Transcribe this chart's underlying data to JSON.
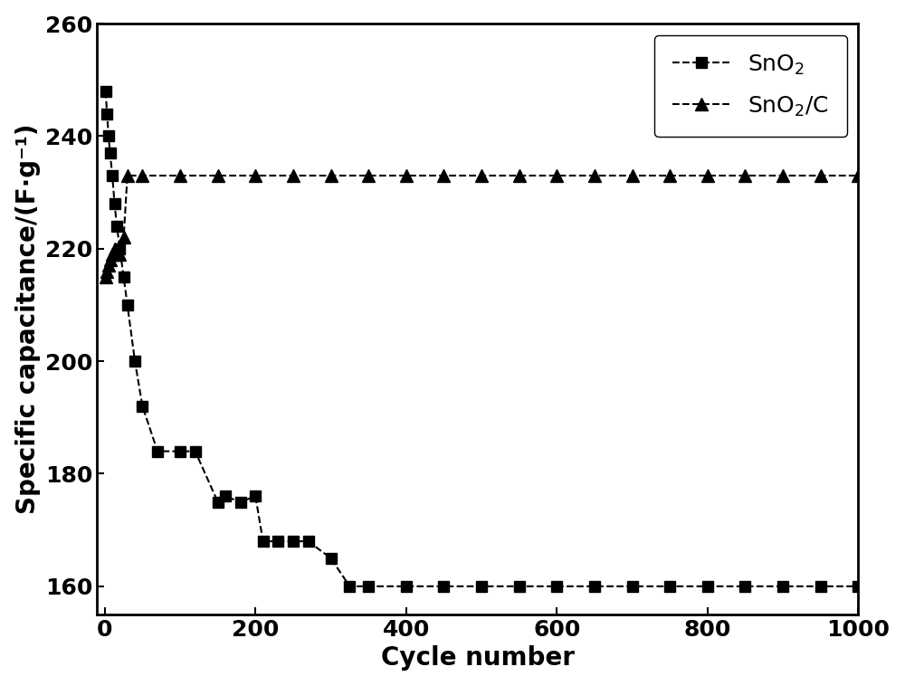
{
  "sno2_x": [
    1,
    3,
    5,
    7,
    10,
    13,
    16,
    20,
    25,
    30,
    40,
    50,
    70,
    100,
    120,
    150,
    160,
    180,
    200,
    210,
    230,
    250,
    270,
    300,
    325,
    350,
    400,
    450,
    500,
    550,
    600,
    650,
    700,
    750,
    800,
    850,
    900,
    950,
    1000
  ],
  "sno2_y": [
    248,
    244,
    240,
    237,
    233,
    228,
    224,
    220,
    215,
    210,
    200,
    192,
    184,
    184,
    184,
    175,
    176,
    175,
    176,
    168,
    168,
    168,
    168,
    165,
    160,
    160,
    160,
    160,
    160,
    160,
    160,
    160,
    160,
    160,
    160,
    160,
    160,
    160,
    160
  ],
  "sno2c_x": [
    1,
    3,
    5,
    8,
    10,
    13,
    16,
    20,
    25,
    30,
    50,
    100,
    150,
    200,
    250,
    300,
    350,
    400,
    450,
    500,
    550,
    600,
    650,
    700,
    750,
    800,
    850,
    900,
    950,
    1000
  ],
  "sno2c_y": [
    215,
    216,
    217,
    218,
    219,
    220,
    219,
    219,
    222,
    233,
    233,
    233,
    233,
    233,
    233,
    233,
    233,
    233,
    233,
    233,
    233,
    233,
    233,
    233,
    233,
    233,
    233,
    233,
    233,
    233
  ],
  "xlabel": "Cycle number",
  "ylabel": "Specific capacitance/(F·g⁻¹)",
  "xlim": [
    -10,
    1000
  ],
  "ylim": [
    155,
    260
  ],
  "yticks": [
    160,
    180,
    200,
    220,
    240,
    260
  ],
  "xticks": [
    0,
    200,
    400,
    600,
    800,
    1000
  ],
  "legend_sno2": "SnO$_2$",
  "legend_sno2c": "SnO$_2$/C",
  "line_color": "#000000",
  "marker_color": "#000000",
  "bg_color": "#ffffff",
  "fontsize_label": 20,
  "fontsize_tick": 18,
  "fontsize_legend": 18
}
